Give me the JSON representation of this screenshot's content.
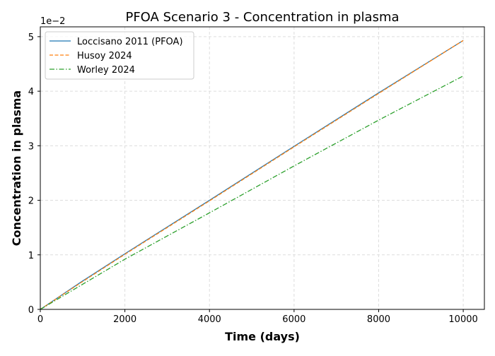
{
  "chart_data": {
    "type": "line",
    "title": "PFOA Scenario 3 - Concentration in plasma",
    "xlabel": "Time (days)",
    "ylabel": "Concentration in plasma",
    "y_offset_label": "1e−2",
    "xlim": [
      0,
      10500
    ],
    "ylim": [
      0,
      0.0518
    ],
    "xticks": [
      0,
      2000,
      4000,
      6000,
      8000,
      10000
    ],
    "xtick_labels": [
      "0",
      "2000",
      "4000",
      "6000",
      "8000",
      "10000"
    ],
    "yticks": [
      0,
      0.01,
      0.02,
      0.03,
      0.04,
      0.05
    ],
    "ytick_labels": [
      "0",
      "1",
      "2",
      "3",
      "4",
      "5"
    ],
    "grid": true,
    "legend_placement": "top-left",
    "x": [
      0,
      1000,
      2000,
      4000,
      6000,
      8000,
      10000
    ],
    "series": [
      {
        "name": "Loccisano 2011 (PFOA)",
        "color": "#1f77b4",
        "dash": "solid",
        "values": [
          0,
          0.0052,
          0.0102,
          0.02,
          0.0299,
          0.0397,
          0.0493
        ]
      },
      {
        "name": "Husoy 2024",
        "color": "#ff7f0e",
        "dash": "dashed",
        "values": [
          0,
          0.0051,
          0.0101,
          0.0199,
          0.0298,
          0.0396,
          0.0493
        ]
      },
      {
        "name": "Worley 2024",
        "color": "#2ca02c",
        "dash": "dashdot",
        "values": [
          0,
          0.0046,
          0.0092,
          0.0177,
          0.0263,
          0.0347,
          0.0428
        ]
      }
    ]
  }
}
